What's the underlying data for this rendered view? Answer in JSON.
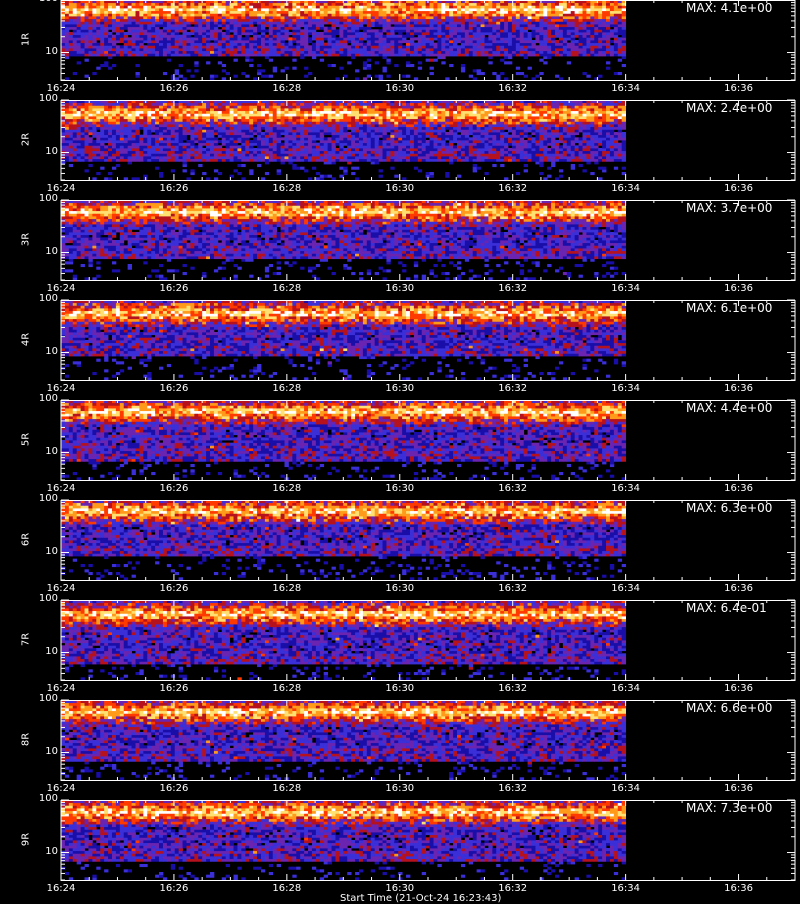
{
  "chart_data": {
    "type": "heatmap",
    "x_tick_labels": [
      "16:24",
      "16:26",
      "16:28",
      "16:30",
      "16:32",
      "16:34",
      "16:36"
    ],
    "x_range": [
      "16:24",
      "16:37"
    ],
    "data_end_time": "16:34",
    "y_scale": "log",
    "y_range": [
      3,
      100
    ],
    "y_tick_labels": [
      "100",
      "10"
    ],
    "colormap": [
      "#000000",
      "#1a0ea8",
      "#3b2fd8",
      "#6a24b0",
      "#b5121e",
      "#ff3a00",
      "#ff9a1a",
      "#ffe070",
      "#ffffff"
    ],
    "grid": false,
    "panels": [
      {
        "label": "1R",
        "max_label": "MAX: 4.1e+00",
        "band_center": 66,
        "band_low": 14,
        "noise_floor": 9
      },
      {
        "label": "2R",
        "max_label": "MAX: 2.4e+00",
        "band_center": 55,
        "band_low": 12,
        "noise_floor": 7
      },
      {
        "label": "3R",
        "max_label": "MAX: 3.7e+00",
        "band_center": 60,
        "band_low": 12,
        "noise_floor": 8
      },
      {
        "label": "4R",
        "max_label": "MAX: 6.1e+00",
        "band_center": 56,
        "band_low": 14,
        "noise_floor": 9
      },
      {
        "label": "5R",
        "max_label": "MAX: 4.4e+00",
        "band_center": 60,
        "band_low": 13,
        "noise_floor": 7
      },
      {
        "label": "6R",
        "max_label": "MAX: 6.3e+00",
        "band_center": 62,
        "band_low": 14,
        "noise_floor": 9
      },
      {
        "label": "7R",
        "max_label": "MAX: 6.4e-01",
        "band_center": 55,
        "band_low": 10,
        "noise_floor": 6
      },
      {
        "label": "8R",
        "max_label": "MAX: 6.6e+00",
        "band_center": 60,
        "band_low": 12,
        "noise_floor": 7
      },
      {
        "label": "9R",
        "max_label": "MAX: 7.3e+00",
        "band_center": 60,
        "band_low": 11,
        "noise_floor": 7
      }
    ],
    "footer_label": "Start Time (21-Oct-24 16:23:43)"
  }
}
